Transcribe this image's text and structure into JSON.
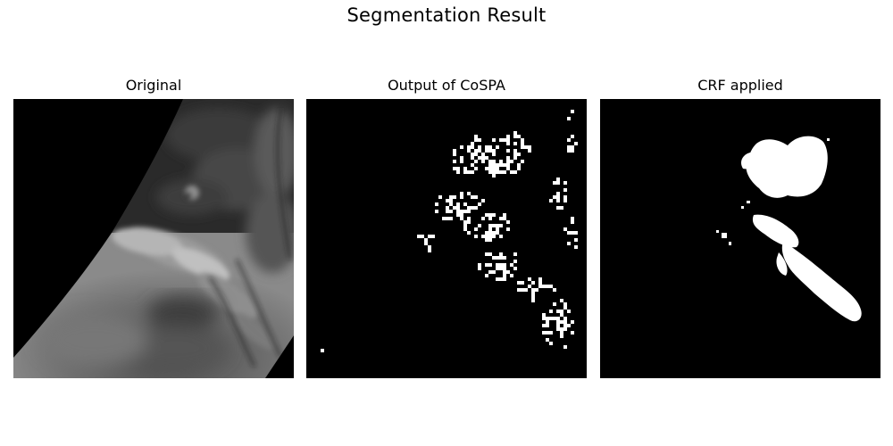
{
  "figure": {
    "title": "Segmentation Result"
  },
  "panels": [
    {
      "title": "Original"
    },
    {
      "title": "Output of CoSPA"
    },
    {
      "title": "CRF applied"
    }
  ],
  "colors": {
    "background": "#ffffff",
    "image_background": "#000000",
    "mask_foreground": "#ffffff"
  }
}
